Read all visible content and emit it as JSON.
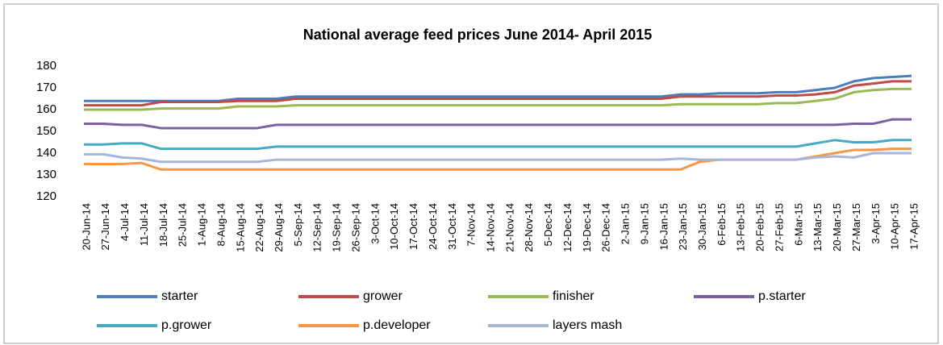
{
  "chart_data": {
    "type": "line",
    "title": "National average feed prices June 2014- April 2015",
    "categories": [
      "20-Jun-14",
      "27-Jun-14",
      "4-Jul-14",
      "11-Jul-14",
      "18-Jul-14",
      "25-Jul-14",
      "1-Aug-14",
      "8-Aug-14",
      "15-Aug-14",
      "22-Aug-14",
      "29-Aug-14",
      "5-Sep-14",
      "12-Sep-14",
      "19-Sep-14",
      "26-Sep-14",
      "3-Oct-14",
      "10-Oct-14",
      "17-Oct-14",
      "24-Oct-14",
      "31-Oct-14",
      "7-Nov-14",
      "14-Nov-14",
      "21-Nov-14",
      "28-Nov-14",
      "5-Dec-14",
      "12-Dec-14",
      "19-Dec-14",
      "26-Dec-14",
      "2-Jan-15",
      "9-Jan-15",
      "16-Jan-15",
      "23-Jan-15",
      "30-Jan-15",
      "6-Feb-15",
      "13-Feb-15",
      "20-Feb-15",
      "27-Feb-15",
      "6-Mar-15",
      "13-Mar-15",
      "20-Mar-15",
      "27-Mar-15",
      "3-Apr-15",
      "10-Apr-15",
      "17-Apr-15"
    ],
    "series": [
      {
        "name": "starter",
        "color": "#4a7ebb",
        "values": [
          164,
          164,
          164,
          164,
          164,
          164,
          164,
          164,
          165,
          165,
          165,
          166,
          166,
          166,
          166,
          166,
          166,
          166,
          166,
          166,
          166,
          166,
          166,
          166,
          166,
          166,
          166,
          166,
          166,
          166,
          166,
          167,
          167,
          167.5,
          167.5,
          167.5,
          168,
          168,
          169,
          170,
          173,
          174.5,
          175,
          175.5
        ]
      },
      {
        "name": "grower",
        "color": "#be4b48",
        "values": [
          162,
          162,
          162,
          162,
          163.5,
          163.5,
          163.5,
          163.5,
          164,
          164,
          164,
          165,
          165,
          165,
          165,
          165,
          165,
          165,
          165,
          165,
          165,
          165,
          165,
          165,
          165,
          165,
          165,
          165,
          165,
          165,
          165,
          166,
          166,
          166,
          166,
          166,
          166.5,
          166.5,
          167,
          168,
          171,
          172,
          173,
          173
        ]
      },
      {
        "name": "finisher",
        "color": "#98b954",
        "values": [
          160,
          160,
          160,
          160,
          160.5,
          160.5,
          160.5,
          160.5,
          161.5,
          161.5,
          161.5,
          162,
          162,
          162,
          162,
          162,
          162,
          162,
          162,
          162,
          162,
          162,
          162,
          162,
          162,
          162,
          162,
          162,
          162,
          162,
          162,
          162.5,
          162.5,
          162.5,
          162.5,
          162.5,
          163,
          163,
          164,
          165,
          168,
          169,
          169.5,
          169.5
        ]
      },
      {
        "name": "p.starter",
        "color": "#7d60a0",
        "values": [
          153.5,
          153.5,
          153,
          153,
          151.5,
          151.5,
          151.5,
          151.5,
          151.5,
          151.5,
          153,
          153,
          153,
          153,
          153,
          153,
          153,
          153,
          153,
          153,
          153,
          153,
          153,
          153,
          153,
          153,
          153,
          153,
          153,
          153,
          153,
          153,
          153,
          153,
          153,
          153,
          153,
          153,
          153,
          153,
          153.5,
          153.5,
          155.5,
          155.5
        ]
      },
      {
        "name": "p.grower",
        "color": "#46aac5",
        "values": [
          144,
          144,
          144.5,
          144.5,
          142,
          142,
          142,
          142,
          142,
          142,
          143,
          143,
          143,
          143,
          143,
          143,
          143,
          143,
          143,
          143,
          143,
          143,
          143,
          143,
          143,
          143,
          143,
          143,
          143,
          143,
          143,
          143,
          143,
          143,
          143,
          143,
          143,
          143,
          144.5,
          146,
          145,
          145,
          146,
          146
        ]
      },
      {
        "name": "p.developer",
        "color": "#f79646",
        "values": [
          135,
          135,
          135,
          135.5,
          132.5,
          132.5,
          132.5,
          132.5,
          132.5,
          132.5,
          132.5,
          132.5,
          132.5,
          132.5,
          132.5,
          132.5,
          132.5,
          132.5,
          132.5,
          132.5,
          132.5,
          132.5,
          132.5,
          132.5,
          132.5,
          132.5,
          132.5,
          132.5,
          132.5,
          132.5,
          132.5,
          132.5,
          136,
          137,
          137,
          137,
          137,
          137,
          138.5,
          140,
          141.5,
          141.5,
          142,
          142
        ]
      },
      {
        "name": "layers mash",
        "color": "#a5b6d9",
        "values": [
          139.5,
          139.5,
          138,
          137.5,
          136,
          136,
          136,
          136,
          136,
          136,
          137,
          137,
          137,
          137,
          137,
          137,
          137,
          137,
          137,
          137,
          137,
          137,
          137,
          137,
          137,
          137,
          137,
          137,
          137,
          137,
          137,
          137.5,
          137,
          137,
          137,
          137,
          137,
          137,
          138,
          138.5,
          138,
          140,
          140,
          140
        ]
      }
    ],
    "ylim": [
      120,
      180
    ],
    "yticks": [
      120,
      130,
      140,
      150,
      160,
      170,
      180
    ],
    "grid": false,
    "legend": "bottom"
  }
}
